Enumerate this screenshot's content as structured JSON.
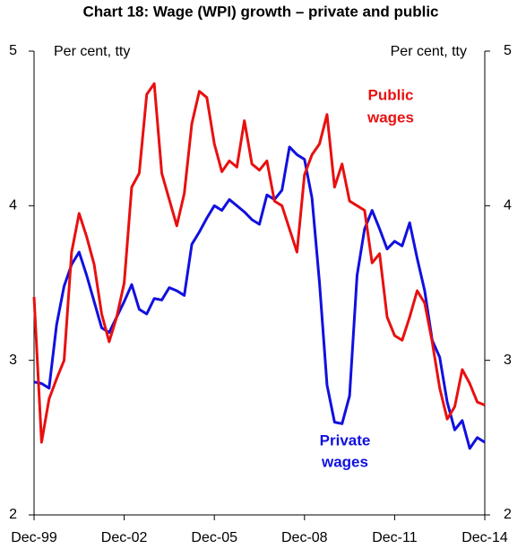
{
  "chart_data": {
    "type": "line",
    "title": "Chart 18: Wage (WPI) growth – private and public",
    "y_label": "Per cent, tty",
    "y2_label": "Per cent, tty",
    "categories": [
      "Dec-99",
      null,
      null,
      null,
      null,
      null,
      null,
      null,
      null,
      null,
      null,
      null,
      "Dec-02",
      null,
      null,
      null,
      null,
      null,
      null,
      null,
      null,
      null,
      null,
      null,
      "Dec-05",
      null,
      null,
      null,
      null,
      null,
      null,
      null,
      null,
      null,
      null,
      null,
      "Dec-08",
      null,
      null,
      null,
      null,
      null,
      null,
      null,
      null,
      null,
      null,
      null,
      "Dec-11",
      null,
      null,
      null,
      null,
      null,
      null,
      null,
      null,
      null,
      null,
      null,
      "Dec-14"
    ],
    "series": [
      {
        "name": "Private wages",
        "label_lines": [
          "Private",
          "wages"
        ],
        "color": "#1010e0",
        "values": [
          2.86,
          2.85,
          2.82,
          3.23,
          3.48,
          3.62,
          3.7,
          3.55,
          3.38,
          3.21,
          3.18,
          3.28,
          3.38,
          3.49,
          3.33,
          3.3,
          3.4,
          3.39,
          3.47,
          3.45,
          3.42,
          3.75,
          3.83,
          3.92,
          4.0,
          3.97,
          4.04,
          4.0,
          3.96,
          3.91,
          3.88,
          4.07,
          4.04,
          4.1,
          4.38,
          4.33,
          4.3,
          4.05,
          3.5,
          2.84,
          2.6,
          2.59,
          2.77,
          3.55,
          3.85,
          3.97,
          3.85,
          3.72,
          3.77,
          3.74,
          3.89,
          3.66,
          3.45,
          3.13,
          3.02,
          2.73,
          2.55,
          2.61,
          2.43,
          2.5,
          2.47
        ]
      },
      {
        "name": "Public wages",
        "label_lines": [
          "Public",
          "wages"
        ],
        "color": "#e81010",
        "values": [
          3.41,
          2.47,
          2.75,
          2.88,
          3.0,
          3.7,
          3.95,
          3.8,
          3.62,
          3.3,
          3.12,
          3.28,
          3.5,
          4.12,
          4.21,
          4.72,
          4.79,
          4.21,
          4.04,
          3.87,
          4.08,
          4.53,
          4.74,
          4.7,
          4.4,
          4.22,
          4.29,
          4.25,
          4.55,
          4.27,
          4.23,
          4.29,
          4.03,
          4.0,
          3.85,
          3.7,
          4.2,
          4.33,
          4.4,
          4.59,
          4.12,
          4.27,
          4.03,
          4.0,
          3.97,
          3.63,
          3.69,
          3.28,
          3.16,
          3.13,
          3.28,
          3.45,
          3.37,
          3.12,
          2.82,
          2.62,
          2.7,
          2.94,
          2.85,
          2.73,
          2.71
        ]
      }
    ],
    "ylim": [
      2,
      5
    ],
    "yticks": [
      2,
      3,
      4,
      5
    ],
    "y2lim": [
      2,
      5
    ],
    "y2ticks": [
      2,
      3,
      4,
      5
    ],
    "grid": false
  }
}
